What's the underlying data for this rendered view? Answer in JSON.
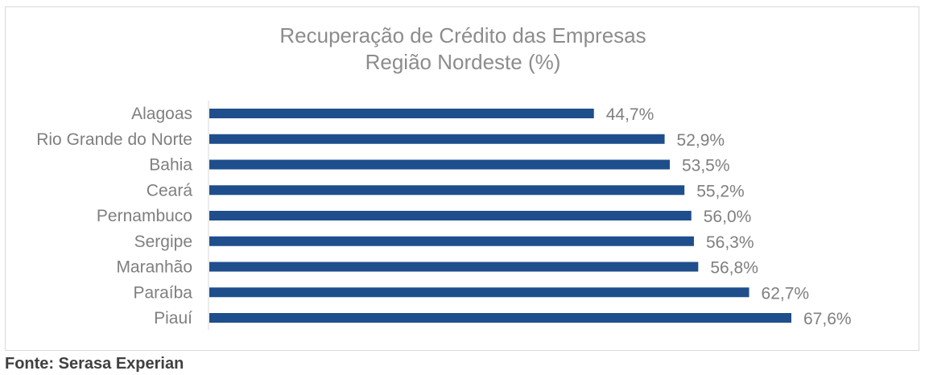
{
  "chart_data": {
    "type": "bar",
    "orientation": "horizontal",
    "title_lines": [
      "Recuperação de Crédito das Empresas",
      "Região Nordeste (%)"
    ],
    "categories": [
      "Alagoas",
      "Rio Grande do Norte",
      "Bahia",
      "Ceará",
      "Pernambuco",
      "Sergipe",
      "Maranhão",
      "Paraíba",
      "Piauí"
    ],
    "values": [
      44.7,
      52.9,
      53.5,
      55.2,
      56.0,
      56.3,
      56.8,
      62.7,
      67.6
    ],
    "value_labels": [
      "44,7%",
      "52,9%",
      "53,5%",
      "55,2%",
      "56,0%",
      "56,3%",
      "56,8%",
      "62,7%",
      "67,6%"
    ],
    "xlim": [
      0,
      67.6
    ],
    "grid": false,
    "legend": "none",
    "bar_color": "#1f4e8c",
    "axis_color": "#d9d9d9"
  },
  "source": "Fonte: Serasa Experian"
}
